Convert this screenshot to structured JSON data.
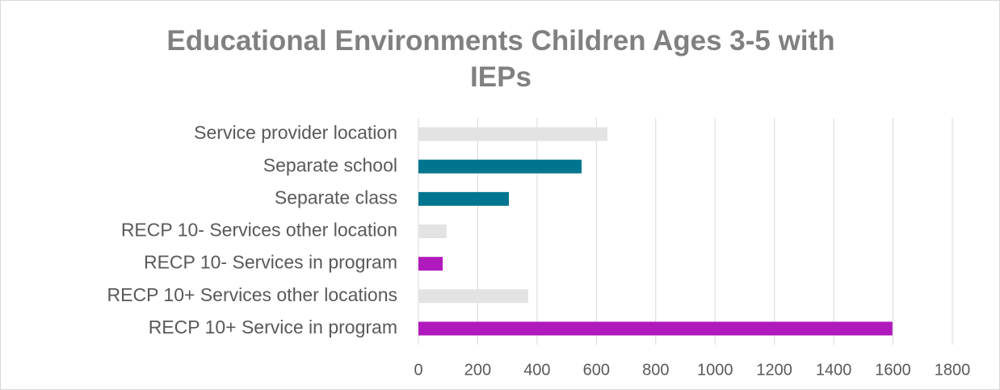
{
  "chart_data": {
    "type": "bar",
    "orientation": "horizontal",
    "title": "Educational Environments Children Ages 3-5 with IEPs",
    "categories": [
      "Service provider location",
      "Separate school",
      "Separate class",
      "RECP 10- Services other location",
      "RECP 10- Services in program",
      "RECP  10+ Services other locations",
      "RECP  10+ Service in program"
    ],
    "values": [
      637,
      550,
      305,
      95,
      82,
      370,
      1598
    ],
    "colors": [
      "#e3e3e3",
      "#00758f",
      "#00758f",
      "#e3e3e3",
      "#b01abc",
      "#e3e3e3",
      "#b01abc"
    ],
    "xlim": [
      0,
      1800
    ],
    "xticks": [
      0,
      200,
      400,
      600,
      800,
      1000,
      1200,
      1400,
      1600,
      1800
    ],
    "grid": true
  }
}
